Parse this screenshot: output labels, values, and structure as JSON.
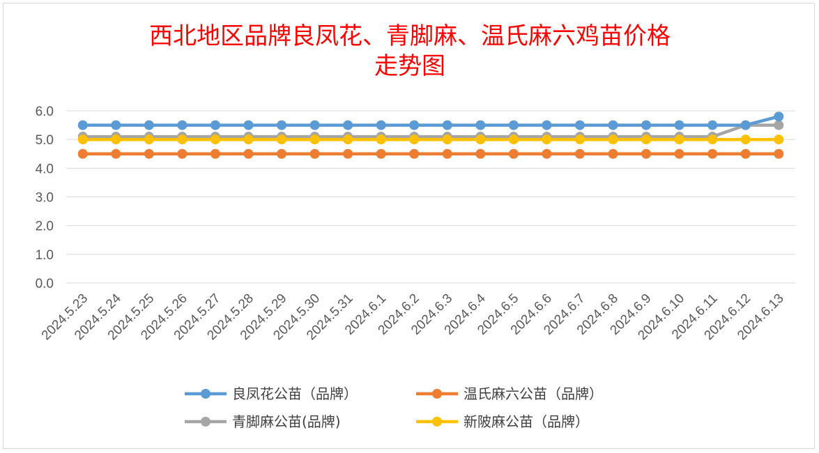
{
  "chart_data": {
    "type": "line",
    "title": [
      "西北地区品牌良凤花、青脚麻、温氏麻六鸡苗价格",
      "走势图"
    ],
    "x": [
      "2024.5.23",
      "2024.5.24",
      "2024.5.25",
      "2024.5.26",
      "2024.5.27",
      "2024.5.28",
      "2024.5.29",
      "2024.5.30",
      "2024.5.31",
      "2024.6.1",
      "2024.6.2",
      "2024.6.3",
      "2024.6.4",
      "2024.6.5",
      "2024.6.6",
      "2024.6.7",
      "2024.6.8",
      "2024.6.9",
      "2024.6.10",
      "2024.6.11",
      "2024.6.12",
      "2024.6.13"
    ],
    "ylim": [
      0,
      6
    ],
    "yticks": [
      "0.0",
      "1.0",
      "2.0",
      "3.0",
      "4.0",
      "5.0",
      "6.0"
    ],
    "grid": true,
    "legend_position": "bottom",
    "series": [
      {
        "name": "良凤花公苗（品牌）",
        "color": "#5b9bd5",
        "values": [
          5.5,
          5.5,
          5.5,
          5.5,
          5.5,
          5.5,
          5.5,
          5.5,
          5.5,
          5.5,
          5.5,
          5.5,
          5.5,
          5.5,
          5.5,
          5.5,
          5.5,
          5.5,
          5.5,
          5.5,
          5.5,
          5.8
        ]
      },
      {
        "name": "温氏麻六公苗（品牌）",
        "color": "#ed7d31",
        "values": [
          4.5,
          4.5,
          4.5,
          4.5,
          4.5,
          4.5,
          4.5,
          4.5,
          4.5,
          4.5,
          4.5,
          4.5,
          4.5,
          4.5,
          4.5,
          4.5,
          4.5,
          4.5,
          4.5,
          4.5,
          4.5,
          4.5
        ]
      },
      {
        "name": "青脚麻公苗(品牌)",
        "color": "#a5a5a5",
        "values": [
          5.1,
          5.1,
          5.1,
          5.1,
          5.1,
          5.1,
          5.1,
          5.1,
          5.1,
          5.1,
          5.1,
          5.1,
          5.1,
          5.1,
          5.1,
          5.1,
          5.1,
          5.1,
          5.1,
          5.1,
          5.5,
          5.5
        ]
      },
      {
        "name": "新陂麻公苗（品牌）",
        "color": "#ffc000",
        "values": [
          5.0,
          5.0,
          5.0,
          5.0,
          5.0,
          5.0,
          5.0,
          5.0,
          5.0,
          5.0,
          5.0,
          5.0,
          5.0,
          5.0,
          5.0,
          5.0,
          5.0,
          5.0,
          5.0,
          5.0,
          5.0,
          5.0
        ]
      }
    ],
    "draw_order": [
      2,
      0,
      1,
      3
    ]
  }
}
